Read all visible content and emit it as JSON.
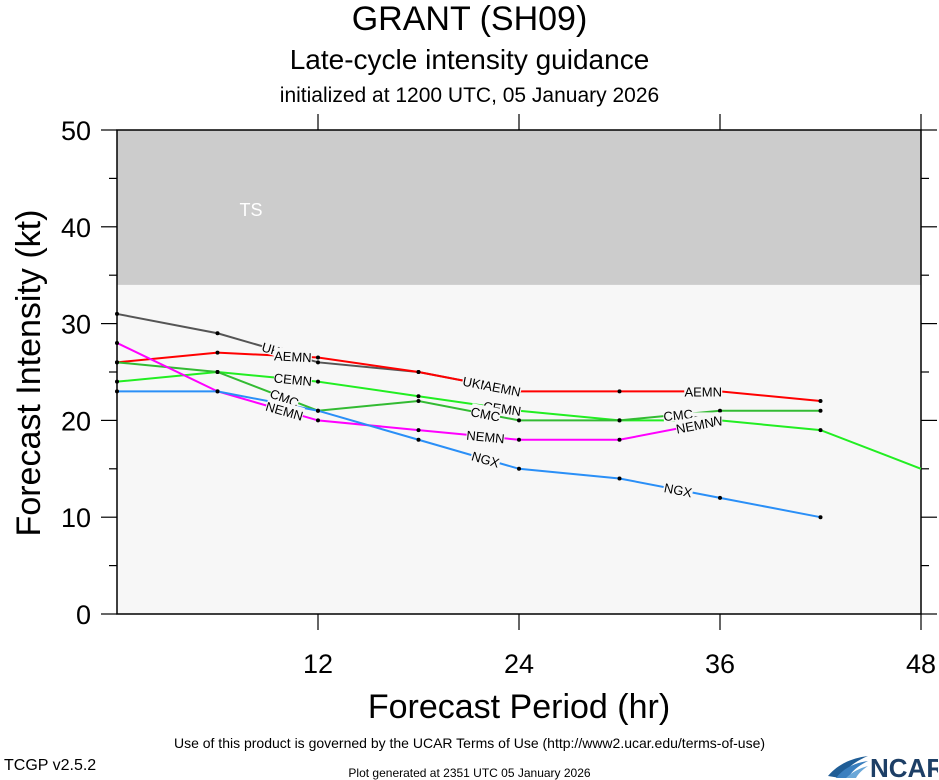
{
  "header": {
    "storm": "GRANT (SH09)",
    "subtitle": "Late-cycle intensity guidance",
    "initialized": "initialized at 1200 UTC, 05 January 2026"
  },
  "footer": {
    "terms": "Use of this product is governed by the UCAR Terms of Use (http://www2.ucar.edu/terms-of-use)",
    "version": "TCGP v2.5.2",
    "generated": "Plot generated at 2351 UTC   05 January 2026",
    "logo_text": "NCAR"
  },
  "chart_data": {
    "type": "line",
    "xlabel": "Forecast Period (hr)",
    "ylabel": "Forecast Intensity (kt)",
    "xlim": [
      0,
      48
    ],
    "ylim": [
      0,
      50
    ],
    "xticks": [
      12,
      24,
      36,
      48
    ],
    "yticks": [
      0,
      10,
      20,
      30,
      40,
      50
    ],
    "bands": [
      {
        "label": "TS",
        "from": 34,
        "to": 50,
        "color": "#cccccc"
      }
    ],
    "plot_background": "#f7f7f7",
    "series": [
      {
        "name": "UKM",
        "color": "#555555",
        "x": [
          0,
          6,
          12,
          18,
          24
        ],
        "y": [
          31,
          29,
          26,
          25,
          23
        ],
        "labels_at": [
          9.5,
          21.5
        ]
      },
      {
        "name": "AEMN",
        "color": "#ff0000",
        "x": [
          0,
          6,
          12,
          18,
          24,
          30,
          36,
          42
        ],
        "y": [
          26,
          27,
          26.5,
          25,
          23,
          23,
          23,
          22
        ],
        "labels_at": [
          10.5,
          23,
          35
        ]
      },
      {
        "name": "CEMN",
        "color": "#22ee22",
        "x": [
          0,
          6,
          12,
          18,
          24,
          30,
          36,
          42,
          48
        ],
        "y": [
          24,
          25,
          24,
          22.5,
          21,
          20,
          20,
          19,
          15
        ],
        "labels_at": [
          10.5,
          23,
          35
        ]
      },
      {
        "name": "CMC",
        "color": "#33bb33",
        "x": [
          0,
          6,
          12,
          18,
          24,
          30,
          36,
          42
        ],
        "y": [
          26,
          25,
          21,
          22,
          20,
          20,
          21,
          21
        ],
        "labels_at": [
          10,
          22,
          33.5
        ]
      },
      {
        "name": "NEMN",
        "color": "#ff00ff",
        "x": [
          0,
          6,
          12,
          18,
          24,
          30,
          36
        ],
        "y": [
          28,
          23,
          20,
          19,
          18,
          18,
          20
        ],
        "labels_at": [
          10,
          22,
          34.5
        ]
      },
      {
        "name": "NGX",
        "color": "#2a8ff7",
        "x": [
          0,
          6,
          12,
          18,
          24,
          30,
          36,
          42
        ],
        "y": [
          23,
          23,
          21,
          18,
          15,
          14,
          12,
          10
        ],
        "labels_at": [
          22,
          33.5
        ]
      }
    ]
  }
}
